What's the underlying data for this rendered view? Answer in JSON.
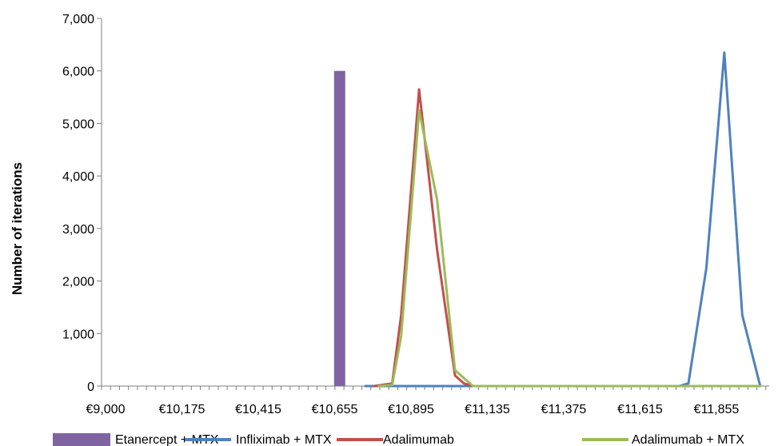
{
  "chart_data": {
    "type": "line",
    "title": "",
    "xlabel": "",
    "ylabel": "Number of iterations",
    "ylim": [
      0,
      7000
    ],
    "yticks": [
      "0",
      "1,000",
      "2,000",
      "3,000",
      "4,000",
      "5,000",
      "6,000",
      "7,000"
    ],
    "ytick_values": [
      0,
      1000,
      2000,
      3000,
      4000,
      5000,
      6000,
      7000
    ],
    "xlim": [
      9000,
      11975
    ],
    "xticks": [
      "€9,000",
      "€10,175",
      "€10,415",
      "€10,655",
      "€10,895",
      "€11,135",
      "€11,375",
      "€11,615",
      "€11,855"
    ],
    "xtick_values": [
      9000,
      10175,
      10415,
      10655,
      10895,
      11135,
      11375,
      11615,
      11855
    ],
    "grid": false,
    "legend": "bottom",
    "series": [
      {
        "name": "Etanercept + MTX",
        "kind": "bar",
        "color": "#8064a2",
        "points": [
          {
            "x": 10175,
            "y": 6000
          }
        ]
      },
      {
        "name": "Infliximab + MTX",
        "kind": "line",
        "color": "#4f81bd",
        "points": [
          {
            "x": 10175,
            "y": 0
          },
          {
            "x": 10655,
            "y": 0
          },
          {
            "x": 11135,
            "y": 0
          },
          {
            "x": 11575,
            "y": 0
          },
          {
            "x": 11615,
            "y": 50
          },
          {
            "x": 11695,
            "y": 2250
          },
          {
            "x": 11775,
            "y": 6350
          },
          {
            "x": 11855,
            "y": 1350
          },
          {
            "x": 11935,
            "y": 0
          }
        ]
      },
      {
        "name": "Adalimumab",
        "kind": "line",
        "color": "#c0504d",
        "points": [
          {
            "x": 10215,
            "y": 0
          },
          {
            "x": 10295,
            "y": 50
          },
          {
            "x": 10335,
            "y": 1350
          },
          {
            "x": 10415,
            "y": 5650
          },
          {
            "x": 10495,
            "y": 2600
          },
          {
            "x": 10575,
            "y": 200
          },
          {
            "x": 10615,
            "y": 50
          },
          {
            "x": 10655,
            "y": 0
          }
        ]
      },
      {
        "name": "Adalimumab + MTX",
        "kind": "line",
        "color": "#9bbb59",
        "points": [
          {
            "x": 10235,
            "y": 0
          },
          {
            "x": 10295,
            "y": 20
          },
          {
            "x": 10335,
            "y": 950
          },
          {
            "x": 10415,
            "y": 5250
          },
          {
            "x": 10495,
            "y": 3550
          },
          {
            "x": 10575,
            "y": 300
          },
          {
            "x": 10655,
            "y": 0
          },
          {
            "x": 11135,
            "y": 0
          },
          {
            "x": 11615,
            "y": 0
          },
          {
            "x": 11935,
            "y": 0
          }
        ]
      }
    ]
  }
}
